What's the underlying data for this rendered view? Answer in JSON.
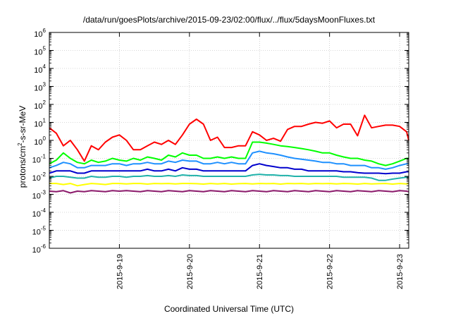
{
  "chart_data": {
    "type": "line",
    "title": "/data/run/goesPlots/archive/2015-09-23/02:00/flux/../flux/5daysMoonFluxes.txt",
    "xlabel": "Coordinated Universal Time (UTC)",
    "ylabel_main": "protons/cm",
    "ylabel_sup": "2",
    "ylabel_rest": "-s-sr-MeV",
    "y_scale": "log",
    "ylim_exponents": [
      -6,
      6
    ],
    "y_ticks": [
      {
        "base": "10",
        "exp": "6"
      },
      {
        "base": "10",
        "exp": "5"
      },
      {
        "base": "10",
        "exp": "4"
      },
      {
        "base": "10",
        "exp": "3"
      },
      {
        "base": "10",
        "exp": "2"
      },
      {
        "base": "10",
        "exp": "1"
      },
      {
        "base": "10",
        "exp": "0"
      },
      {
        "base": "10",
        "exp": "-1"
      },
      {
        "base": "10",
        "exp": "-2"
      },
      {
        "base": "10",
        "exp": "-3"
      },
      {
        "base": "10",
        "exp": "-4"
      },
      {
        "base": "10",
        "exp": "-5"
      },
      {
        "base": "10",
        "exp": "-6"
      }
    ],
    "xlim_days": [
      18.0,
      23.13
    ],
    "x_ticks": [
      {
        "label": "2015-9-19",
        "day": 19
      },
      {
        "label": "2015-9-20",
        "day": 20
      },
      {
        "label": "2015-9-21",
        "day": 21
      },
      {
        "label": "2015-9-22",
        "day": 22
      },
      {
        "label": "2015-9-23",
        "day": 23
      }
    ],
    "grid": true,
    "series": [
      {
        "color": "#ff0000",
        "x": [
          18.0,
          18.1,
          18.2,
          18.3,
          18.4,
          18.5,
          18.6,
          18.7,
          18.8,
          18.9,
          19.0,
          19.1,
          19.2,
          19.3,
          19.4,
          19.5,
          19.6,
          19.7,
          19.8,
          19.9,
          20.0,
          20.1,
          20.2,
          20.3,
          20.4,
          20.5,
          20.6,
          20.7,
          20.8,
          20.9,
          21.0,
          21.1,
          21.2,
          21.3,
          21.4,
          21.5,
          21.6,
          21.7,
          21.8,
          21.9,
          22.0,
          22.1,
          22.2,
          22.3,
          22.4,
          22.5,
          22.6,
          22.7,
          22.8,
          22.9,
          23.0,
          23.1,
          23.13
        ],
        "y": [
          5,
          2.5,
          0.5,
          1,
          0.3,
          0.07,
          0.5,
          0.3,
          0.8,
          1.5,
          2,
          1,
          0.3,
          0.3,
          0.5,
          0.8,
          0.6,
          1,
          0.6,
          2,
          8,
          15,
          8,
          1,
          1.5,
          0.4,
          0.4,
          0.5,
          0.5,
          3,
          2,
          1,
          1.3,
          0.9,
          4,
          6,
          6,
          8,
          10,
          9,
          12,
          5,
          8,
          8,
          1.8,
          25,
          5,
          6,
          7,
          7,
          6,
          3,
          1
        ]
      },
      {
        "color": "#00ff00",
        "x": [
          18.0,
          18.1,
          18.2,
          18.3,
          18.4,
          18.5,
          18.6,
          18.7,
          18.8,
          18.9,
          19.0,
          19.1,
          19.2,
          19.3,
          19.4,
          19.5,
          19.6,
          19.7,
          19.8,
          19.9,
          20.0,
          20.1,
          20.2,
          20.3,
          20.4,
          20.5,
          20.6,
          20.7,
          20.8,
          20.9,
          21.0,
          21.1,
          21.2,
          21.3,
          21.4,
          21.5,
          21.6,
          21.7,
          21.8,
          21.9,
          22.0,
          22.1,
          22.2,
          22.3,
          22.4,
          22.5,
          22.6,
          22.7,
          22.8,
          22.9,
          23.0,
          23.1,
          23.13
        ],
        "y": [
          0.05,
          0.08,
          0.2,
          0.1,
          0.06,
          0.05,
          0.08,
          0.06,
          0.07,
          0.1,
          0.08,
          0.07,
          0.1,
          0.08,
          0.12,
          0.1,
          0.08,
          0.15,
          0.12,
          0.2,
          0.15,
          0.15,
          0.1,
          0.1,
          0.12,
          0.1,
          0.12,
          0.1,
          0.1,
          0.8,
          0.8,
          0.7,
          0.6,
          0.5,
          0.45,
          0.4,
          0.35,
          0.3,
          0.25,
          0.2,
          0.2,
          0.15,
          0.12,
          0.1,
          0.1,
          0.08,
          0.07,
          0.05,
          0.04,
          0.05,
          0.07,
          0.1,
          0.1
        ]
      },
      {
        "color": "#1e90ff",
        "x": [
          18.0,
          18.1,
          18.2,
          18.3,
          18.4,
          18.5,
          18.6,
          18.7,
          18.8,
          18.9,
          19.0,
          19.1,
          19.2,
          19.3,
          19.4,
          19.5,
          19.6,
          19.7,
          19.8,
          19.9,
          20.0,
          20.1,
          20.2,
          20.3,
          20.4,
          20.5,
          20.6,
          20.7,
          20.8,
          20.9,
          21.0,
          21.1,
          21.2,
          21.3,
          21.4,
          21.5,
          21.6,
          21.7,
          21.8,
          21.9,
          22.0,
          22.1,
          22.2,
          22.3,
          22.4,
          22.5,
          22.6,
          22.7,
          22.8,
          22.9,
          23.0,
          23.1,
          23.13
        ],
        "y": [
          0.03,
          0.04,
          0.06,
          0.05,
          0.03,
          0.03,
          0.04,
          0.04,
          0.04,
          0.05,
          0.05,
          0.04,
          0.05,
          0.05,
          0.06,
          0.05,
          0.05,
          0.07,
          0.06,
          0.08,
          0.07,
          0.07,
          0.05,
          0.05,
          0.06,
          0.05,
          0.06,
          0.05,
          0.05,
          0.2,
          0.25,
          0.2,
          0.18,
          0.15,
          0.12,
          0.1,
          0.09,
          0.08,
          0.07,
          0.06,
          0.06,
          0.05,
          0.05,
          0.04,
          0.04,
          0.04,
          0.03,
          0.03,
          0.025,
          0.03,
          0.04,
          0.05,
          0.05
        ]
      },
      {
        "color": "#0000cd",
        "x": [
          18.0,
          18.1,
          18.2,
          18.3,
          18.4,
          18.5,
          18.6,
          18.7,
          18.8,
          18.9,
          19.0,
          19.1,
          19.2,
          19.3,
          19.4,
          19.5,
          19.6,
          19.7,
          19.8,
          19.9,
          20.0,
          20.1,
          20.2,
          20.3,
          20.4,
          20.5,
          20.6,
          20.7,
          20.8,
          20.9,
          21.0,
          21.1,
          21.2,
          21.3,
          21.4,
          21.5,
          21.6,
          21.7,
          21.8,
          21.9,
          22.0,
          22.1,
          22.2,
          22.3,
          22.4,
          22.5,
          22.6,
          22.7,
          22.8,
          22.9,
          23.0,
          23.1,
          23.13
        ],
        "y": [
          0.015,
          0.02,
          0.02,
          0.02,
          0.015,
          0.015,
          0.02,
          0.02,
          0.02,
          0.02,
          0.02,
          0.02,
          0.02,
          0.02,
          0.025,
          0.02,
          0.02,
          0.025,
          0.02,
          0.03,
          0.025,
          0.025,
          0.02,
          0.02,
          0.02,
          0.02,
          0.02,
          0.02,
          0.02,
          0.04,
          0.05,
          0.04,
          0.035,
          0.03,
          0.03,
          0.025,
          0.025,
          0.02,
          0.02,
          0.02,
          0.02,
          0.02,
          0.018,
          0.018,
          0.016,
          0.015,
          0.015,
          0.015,
          0.014,
          0.015,
          0.015,
          0.018,
          0.018
        ]
      },
      {
        "color": "#20b2aa",
        "x": [
          18.0,
          18.1,
          18.2,
          18.3,
          18.4,
          18.5,
          18.6,
          18.7,
          18.8,
          18.9,
          19.0,
          19.1,
          19.2,
          19.3,
          19.4,
          19.5,
          19.6,
          19.7,
          19.8,
          19.9,
          20.0,
          20.1,
          20.2,
          20.3,
          20.4,
          20.5,
          20.6,
          20.7,
          20.8,
          20.9,
          21.0,
          21.1,
          21.2,
          21.3,
          21.4,
          21.5,
          21.6,
          21.7,
          21.8,
          21.9,
          22.0,
          22.1,
          22.2,
          22.3,
          22.4,
          22.5,
          22.6,
          22.7,
          22.8,
          22.9,
          23.0,
          23.1,
          23.13
        ],
        "y": [
          0.008,
          0.01,
          0.01,
          0.009,
          0.008,
          0.008,
          0.01,
          0.009,
          0.009,
          0.01,
          0.01,
          0.009,
          0.01,
          0.01,
          0.011,
          0.01,
          0.01,
          0.011,
          0.01,
          0.012,
          0.011,
          0.011,
          0.01,
          0.01,
          0.01,
          0.01,
          0.01,
          0.01,
          0.01,
          0.012,
          0.013,
          0.012,
          0.012,
          0.011,
          0.011,
          0.01,
          0.01,
          0.01,
          0.01,
          0.01,
          0.01,
          0.01,
          0.009,
          0.009,
          0.009,
          0.009,
          0.008,
          0.006,
          0.006,
          0.007,
          0.008,
          0.009,
          0.009
        ]
      },
      {
        "color": "#ffff00",
        "x": [
          18.0,
          18.1,
          18.2,
          18.3,
          18.4,
          18.5,
          18.6,
          18.7,
          18.8,
          18.9,
          19.0,
          19.1,
          19.2,
          19.3,
          19.4,
          19.5,
          19.6,
          19.7,
          19.8,
          19.9,
          20.0,
          20.1,
          20.2,
          20.3,
          20.4,
          20.5,
          20.6,
          20.7,
          20.8,
          20.9,
          21.0,
          21.1,
          21.2,
          21.3,
          21.4,
          21.5,
          21.6,
          21.7,
          21.8,
          21.9,
          22.0,
          22.1,
          22.2,
          22.3,
          22.4,
          22.5,
          22.6,
          22.7,
          22.8,
          22.9,
          23.0,
          23.1,
          23.13
        ],
        "y": [
          0.004,
          0.004,
          0.0035,
          0.004,
          0.003,
          0.0035,
          0.004,
          0.0038,
          0.0035,
          0.004,
          0.004,
          0.0038,
          0.004,
          0.004,
          0.0037,
          0.004,
          0.0039,
          0.004,
          0.0038,
          0.004,
          0.004,
          0.0039,
          0.0037,
          0.004,
          0.0038,
          0.004,
          0.0037,
          0.0039,
          0.004,
          0.0038,
          0.004,
          0.0039,
          0.004,
          0.0037,
          0.004,
          0.0039,
          0.004,
          0.0038,
          0.004,
          0.0039,
          0.004,
          0.0038,
          0.004,
          0.0039,
          0.0037,
          0.004,
          0.0038,
          0.0039,
          0.004,
          0.0037,
          0.004,
          0.0038,
          0.004
        ]
      },
      {
        "color": "#8b1a6b",
        "x": [
          18.0,
          18.1,
          18.2,
          18.3,
          18.4,
          18.5,
          18.6,
          18.7,
          18.8,
          18.9,
          19.0,
          19.1,
          19.2,
          19.3,
          19.4,
          19.5,
          19.6,
          19.7,
          19.8,
          19.9,
          20.0,
          20.1,
          20.2,
          20.3,
          20.4,
          20.5,
          20.6,
          20.7,
          20.8,
          20.9,
          21.0,
          21.1,
          21.2,
          21.3,
          21.4,
          21.5,
          21.6,
          21.7,
          21.8,
          21.9,
          22.0,
          22.1,
          22.2,
          22.3,
          22.4,
          22.5,
          22.6,
          22.7,
          22.8,
          22.9,
          23.0,
          23.1,
          23.13
        ],
        "y": [
          0.0015,
          0.0014,
          0.0016,
          0.0012,
          0.0015,
          0.0014,
          0.0016,
          0.0015,
          0.0014,
          0.0016,
          0.0015,
          0.0016,
          0.0015,
          0.0014,
          0.0016,
          0.0015,
          0.0014,
          0.0016,
          0.0015,
          0.0014,
          0.0016,
          0.0015,
          0.0014,
          0.0016,
          0.0015,
          0.0014,
          0.0016,
          0.0015,
          0.0014,
          0.0016,
          0.0015,
          0.0014,
          0.0016,
          0.0015,
          0.0014,
          0.0016,
          0.0015,
          0.0014,
          0.0016,
          0.0015,
          0.0014,
          0.0016,
          0.0015,
          0.0014,
          0.0016,
          0.0015,
          0.0014,
          0.0016,
          0.0015,
          0.0014,
          0.0016,
          0.0015,
          0.0014
        ]
      }
    ]
  }
}
